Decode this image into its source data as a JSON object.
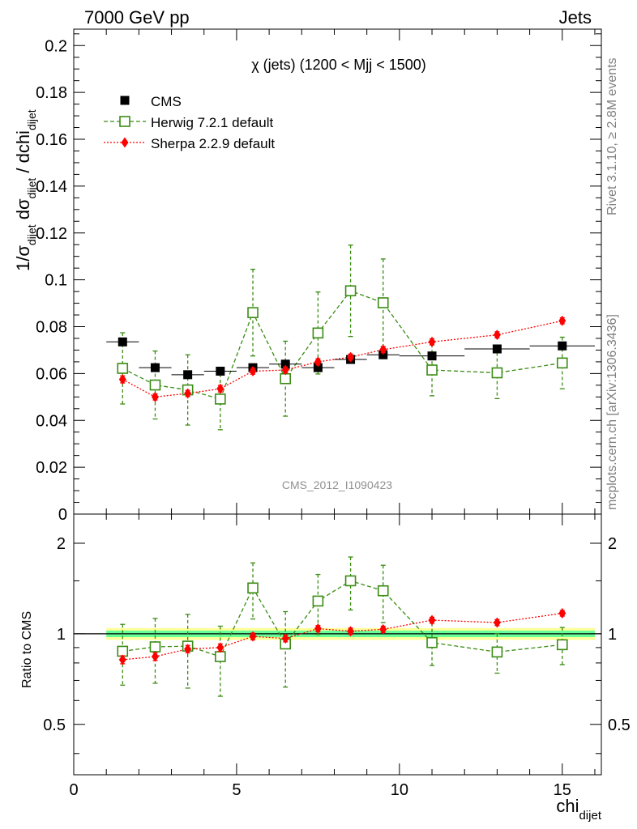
{
  "header": {
    "left": "7000 GeV pp",
    "right": "Jets"
  },
  "side_labels": {
    "rivet": "Rivet 3.1.10, ≥ 2.8M events",
    "mcplots": "mcplots.cern.ch [arXiv:1306.3436]"
  },
  "analysis_id": "CMS_2012_I1090423",
  "colors": {
    "cms": "#000000",
    "herwig": "#3a8c13",
    "sherpa": "#ff0000",
    "band_outer": "#ffff99",
    "band_inner": "#66ff99"
  },
  "chart_data": [
    {
      "type": "scatter",
      "title": "χ (jets) (1200 < Mjj < 1500)",
      "ylabel": "1/σ_dijet dσ_dijet / dchi_dijet",
      "ylim": [
        0,
        0.207
      ],
      "xlim": [
        0,
        16.2
      ],
      "yticks": [
        0,
        0.02,
        0.04,
        0.06,
        0.08,
        0.1,
        0.12,
        0.14,
        0.16,
        0.18,
        0.2
      ],
      "ytick_labels": [
        "0",
        "0.02",
        "0.04",
        "0.06",
        "0.08",
        "0.1",
        "0.12",
        "0.14",
        "0.16",
        "0.18",
        "0.2"
      ],
      "legend_position": "top-left",
      "x": [
        1.5,
        2.5,
        3.5,
        4.5,
        5.5,
        6.5,
        7.5,
        8.5,
        9.5,
        11,
        13,
        15
      ],
      "xerr": [
        0.5,
        0.5,
        0.5,
        0.5,
        0.5,
        0.5,
        0.5,
        0.5,
        0.5,
        1,
        1,
        1
      ],
      "series": [
        {
          "name": "CMS",
          "marker": "square-filled",
          "values": [
            0.0735,
            0.0625,
            0.0595,
            0.061,
            0.0625,
            0.064,
            0.0625,
            0.066,
            0.068,
            0.0675,
            0.0705,
            0.0718
          ],
          "errors": [
            0.0015,
            0.0012,
            0.0012,
            0.0012,
            0.0012,
            0.0012,
            0.0012,
            0.0012,
            0.0012,
            0.0012,
            0.0012,
            0.0012
          ]
        },
        {
          "name": "Herwig 7.2.1 default",
          "marker": "square-open",
          "values": [
            0.0622,
            0.0551,
            0.053,
            0.0491,
            0.086,
            0.0578,
            0.0773,
            0.0953,
            0.0902,
            0.0615,
            0.0603,
            0.0645
          ],
          "errors": [
            0.0152,
            0.0145,
            0.015,
            0.0131,
            0.0185,
            0.016,
            0.0175,
            0.0195,
            0.0187,
            0.011,
            0.011,
            0.011
          ]
        },
        {
          "name": "Sherpa 2.2.9 default",
          "marker": "diamond-filled",
          "values": [
            0.0575,
            0.05,
            0.0515,
            0.0535,
            0.061,
            0.0615,
            0.065,
            0.067,
            0.0702,
            0.0735,
            0.0765,
            0.0825
          ],
          "errors": [
            0.0015,
            0.0013,
            0.0013,
            0.0014,
            0.0013,
            0.0013,
            0.0013,
            0.0013,
            0.0013,
            0.0013,
            0.0013,
            0.0013
          ]
        }
      ]
    },
    {
      "type": "scatter",
      "ylabel": "Ratio to CMS",
      "xlabel": "chi_dijet",
      "yscale": "log",
      "ylim": [
        0.34,
        2.5
      ],
      "xlim": [
        0,
        16.2
      ],
      "xticks": [
        0,
        5,
        10,
        15
      ],
      "xtick_labels": [
        "0",
        "5",
        "10",
        "15"
      ],
      "yticks": [
        0.5,
        1,
        2
      ],
      "ytick_labels": [
        "0.5",
        "1",
        "2"
      ],
      "band": {
        "inner": 0.025,
        "outer": 0.045
      },
      "series": [
        {
          "name": "Herwig 7.2.1 default",
          "values": [
            0.875,
            0.905,
            0.91,
            0.84,
            1.42,
            0.925,
            1.285,
            1.5,
            1.39,
            0.935,
            0.87,
            0.92
          ],
          "errors": [
            0.2,
            0.22,
            0.25,
            0.22,
            0.3,
            0.26,
            0.29,
            0.3,
            0.3,
            0.15,
            0.13,
            0.13
          ]
        },
        {
          "name": "Sherpa 2.2.9 default",
          "values": [
            0.82,
            0.84,
            0.89,
            0.9,
            0.98,
            0.965,
            1.04,
            1.02,
            1.035,
            1.11,
            1.09,
            1.17
          ],
          "errors": [
            0.025,
            0.025,
            0.025,
            0.025,
            0.025,
            0.025,
            0.025,
            0.025,
            0.025,
            0.025,
            0.025,
            0.025
          ]
        }
      ]
    }
  ]
}
